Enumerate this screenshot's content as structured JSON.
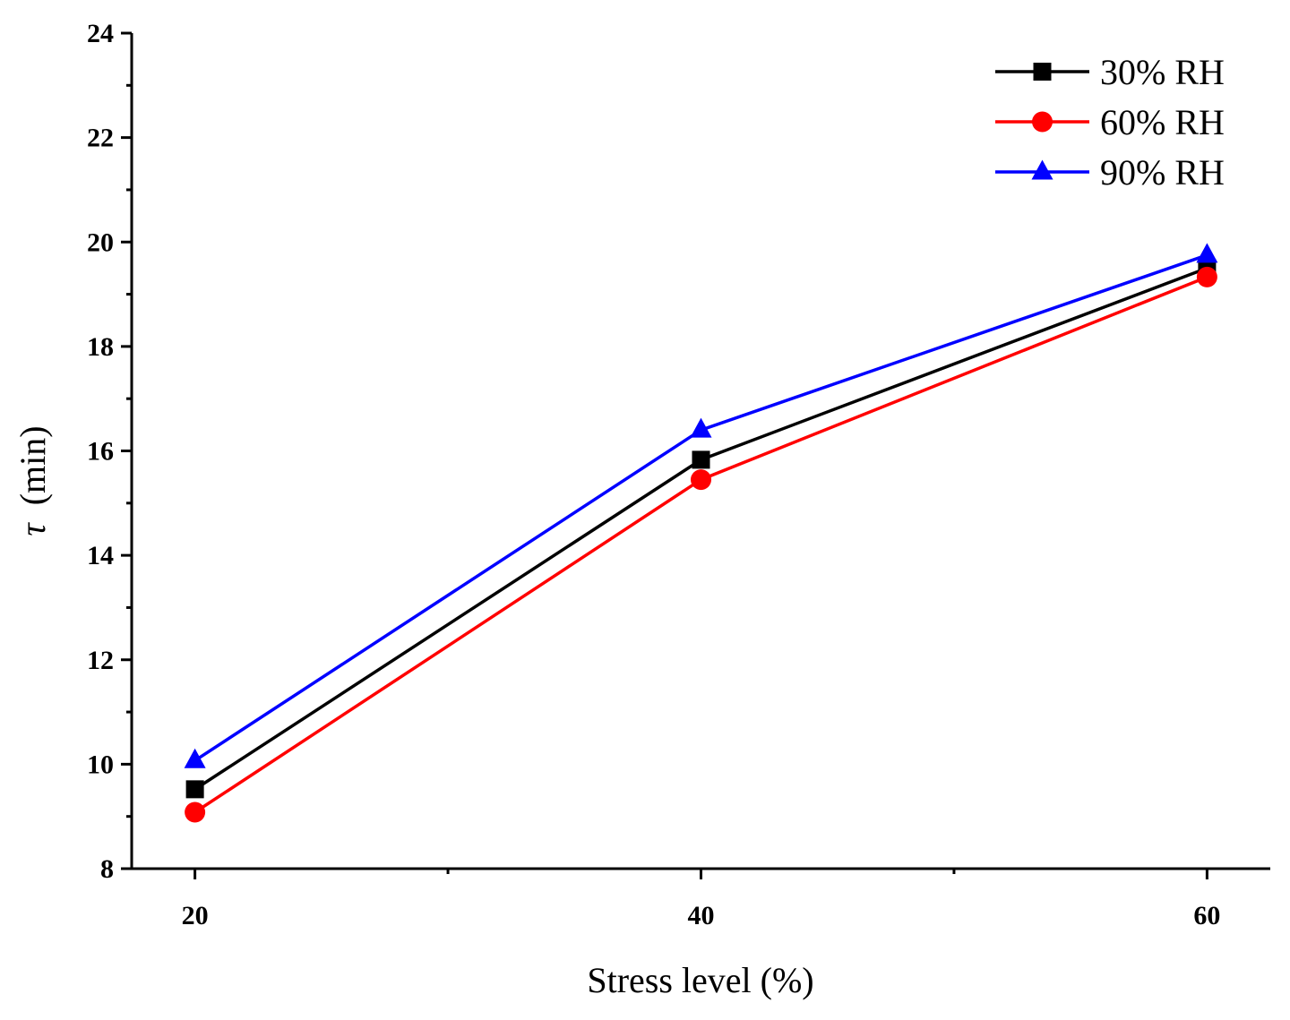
{
  "chart_data": {
    "type": "line",
    "title": "",
    "xlabel": "Stress level (%)",
    "ylabel_symbol": "τ",
    "ylabel_unit": "(min)",
    "categories": [
      "20",
      "40",
      "60"
    ],
    "x": [
      20,
      40,
      60
    ],
    "xlim": [
      17.5,
      62.5
    ],
    "ylim": [
      8,
      24
    ],
    "yticks": [
      8,
      10,
      12,
      14,
      16,
      18,
      20,
      22,
      24
    ],
    "xticks": [
      20,
      40,
      60
    ],
    "grid": false,
    "legend_position": "top-right",
    "series": [
      {
        "name": "30% RH",
        "color": "#000000",
        "marker": "square",
        "values": [
          9.52,
          15.83,
          19.5
        ]
      },
      {
        "name": "60% RH",
        "color": "#ff0000",
        "marker": "circle",
        "values": [
          9.08,
          15.45,
          19.33
        ]
      },
      {
        "name": "90% RH",
        "color": "#0000ff",
        "marker": "triangle",
        "values": [
          10.07,
          16.4,
          19.75
        ]
      }
    ]
  }
}
